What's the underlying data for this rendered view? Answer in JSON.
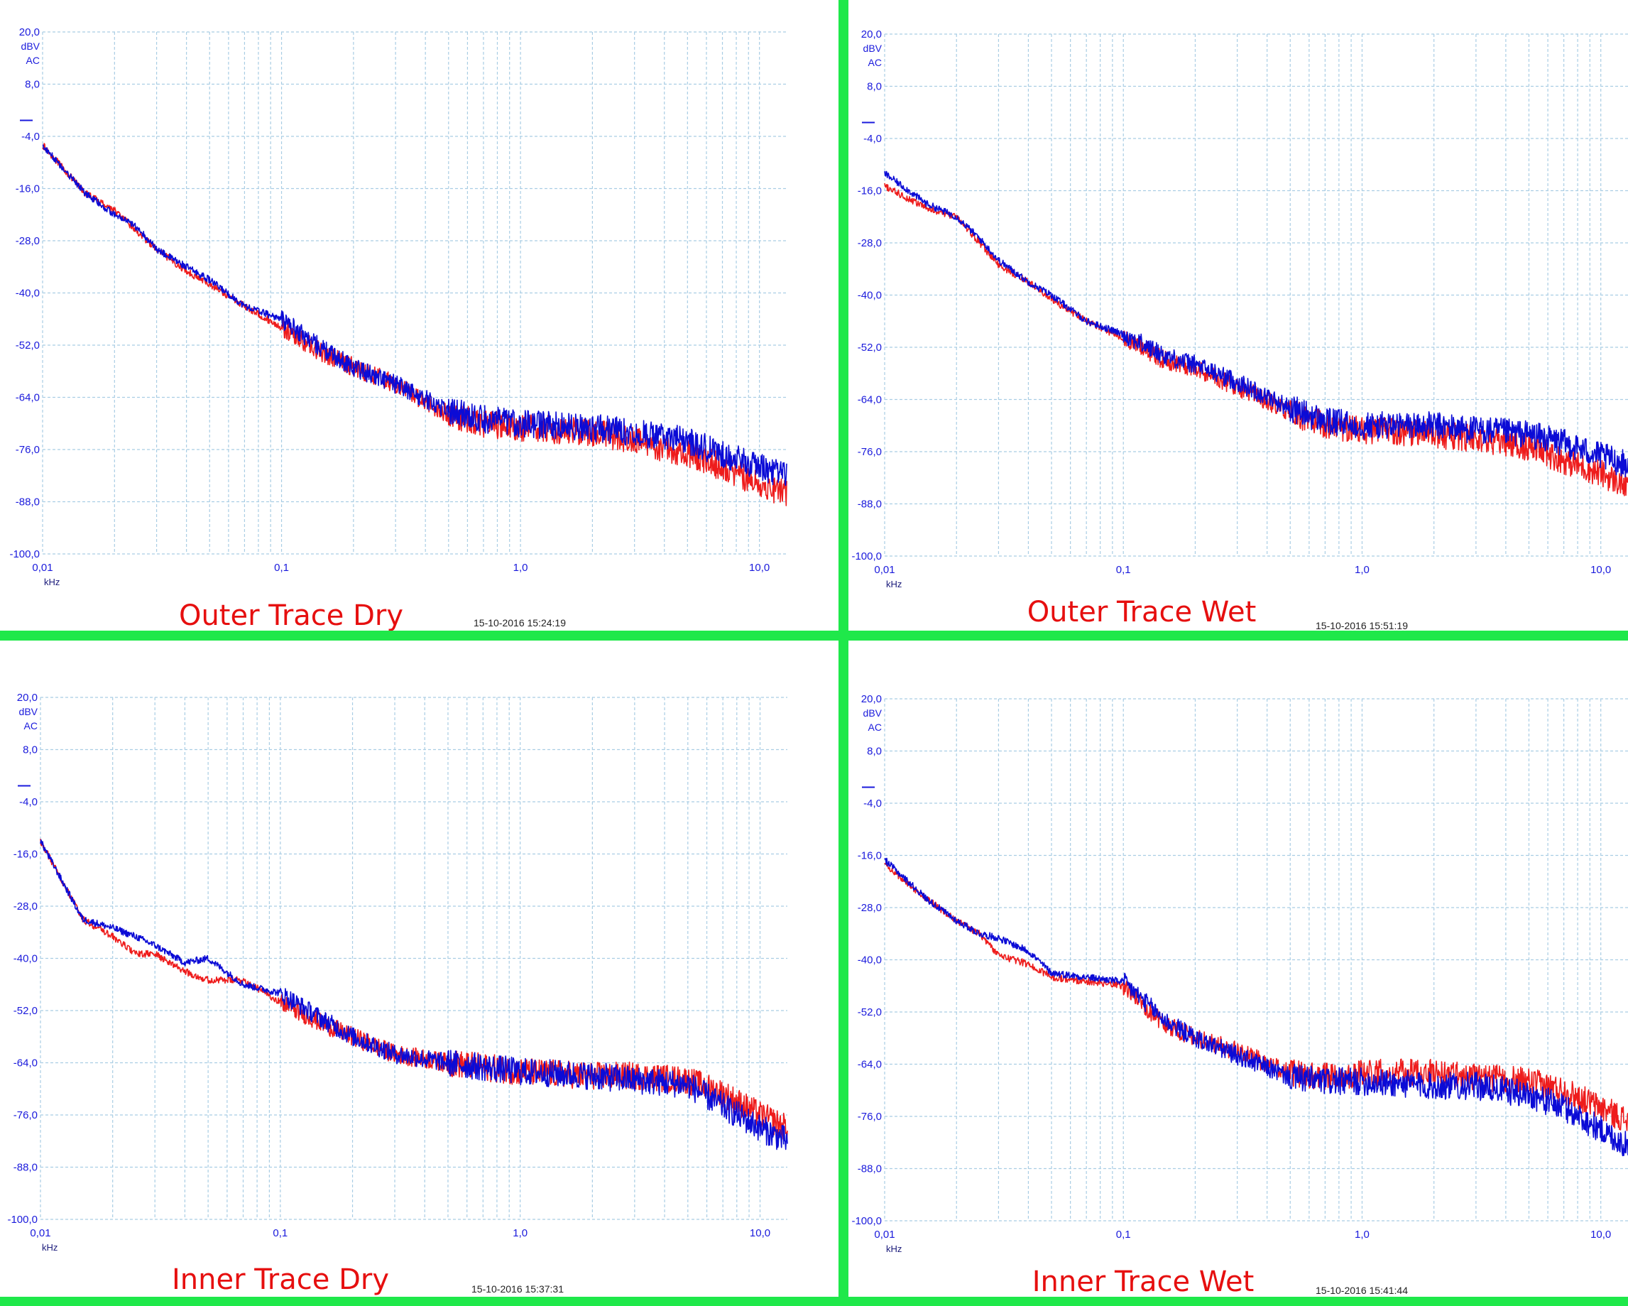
{
  "colors": {
    "divider": "#1fe84a",
    "series_red": "#ee1c1c",
    "series_blue": "#0b0bd6",
    "axis_text": "#1a1adc",
    "grid": "#a9cde4",
    "panel_title": "#e60f0f",
    "timestamp": "#222222"
  },
  "panels": [
    {
      "title": "Outer Trace Dry",
      "timestamp": "15-10-2016 15:24:19",
      "unit_lines": [
        "dBV",
        "AC"
      ],
      "x_unit": "kHz"
    },
    {
      "title": "Outer Trace Wet",
      "timestamp": "15-10-2016 15:51:19",
      "unit_lines": [
        "dBV",
        "AC"
      ],
      "x_unit": "kHz"
    },
    {
      "title": "Inner Trace Dry",
      "timestamp": "15-10-2016 15:37:31",
      "unit_lines": [
        "dBV",
        "AC"
      ],
      "x_unit": "kHz"
    },
    {
      "title": "Inner Trace Wet",
      "timestamp": "15-10-2016 15:41:44",
      "unit_lines": [
        "dBV",
        "AC"
      ],
      "x_unit": "kHz"
    }
  ],
  "chart_data": [
    {
      "type": "line",
      "title": "Outer Trace Dry",
      "xlabel": "kHz",
      "ylabel": "dBV AC",
      "x_scale": "log",
      "xlim": [
        0.01,
        13
      ],
      "ylim": [
        -100,
        20
      ],
      "x_ticks": [
        "0,01",
        "0,1",
        "1,0",
        "10,0"
      ],
      "y_ticks": [
        "20,0",
        "8,0",
        "-4,0",
        "-16,0",
        "-28,0",
        "-40,0",
        "-52,0",
        "-64,0",
        "-76,0",
        "-88,0",
        "-100,0"
      ],
      "grid": true,
      "x": [
        0.01,
        0.015,
        0.02,
        0.025,
        0.03,
        0.04,
        0.05,
        0.07,
        0.1,
        0.15,
        0.2,
        0.3,
        0.5,
        0.7,
        1.0,
        2.0,
        3.0,
        5.0,
        7.0,
        10.0,
        13.0
      ],
      "series": [
        {
          "values": [
            -6,
            -17,
            -21,
            -26,
            -30,
            -35,
            -38,
            -43,
            -48,
            -54,
            -57,
            -61,
            -68,
            -70,
            -71,
            -72,
            -74,
            -77,
            -80,
            -84,
            -86
          ]
        },
        {
          "values": [
            -6,
            -17,
            -22,
            -25,
            -30,
            -34,
            -37,
            -43,
            -46,
            -53,
            -57,
            -61,
            -67,
            -69,
            -70,
            -71,
            -72,
            -74,
            -77,
            -80,
            -82
          ]
        }
      ]
    },
    {
      "type": "line",
      "title": "Outer Trace Wet",
      "xlabel": "kHz",
      "ylabel": "dBV AC",
      "x_scale": "log",
      "xlim": [
        0.01,
        13
      ],
      "ylim": [
        -100,
        20
      ],
      "x_ticks": [
        "0,01",
        "0,1",
        "1,0",
        "10,0"
      ],
      "y_ticks": [
        "20,0",
        "8,0",
        "-4,0",
        "-16,0",
        "-28,0",
        "-40,0",
        "-52,0",
        "-64,0",
        "-76,0",
        "-88,0",
        "-100,0"
      ],
      "grid": true,
      "x": [
        0.01,
        0.015,
        0.02,
        0.025,
        0.03,
        0.04,
        0.05,
        0.07,
        0.1,
        0.15,
        0.2,
        0.3,
        0.5,
        0.7,
        1.0,
        2.0,
        3.0,
        5.0,
        7.0,
        10.0,
        13.0
      ],
      "series": [
        {
          "values": [
            -15,
            -20,
            -22,
            -28,
            -33,
            -37,
            -41,
            -46,
            -50,
            -55,
            -57,
            -61,
            -67,
            -70,
            -71,
            -72,
            -73,
            -75,
            -78,
            -81,
            -84
          ]
        },
        {
          "values": [
            -12,
            -19,
            -22,
            -27,
            -32,
            -37,
            -40,
            -46,
            -49,
            -54,
            -56,
            -60,
            -66,
            -69,
            -70,
            -70,
            -71,
            -72,
            -74,
            -77,
            -79
          ]
        }
      ]
    },
    {
      "type": "line",
      "title": "Inner Trace Dry",
      "xlabel": "kHz",
      "ylabel": "dBV AC",
      "x_scale": "log",
      "xlim": [
        0.01,
        13
      ],
      "ylim": [
        -100,
        20
      ],
      "x_ticks": [
        "0,01",
        "0,1",
        "1,0",
        "10,0"
      ],
      "y_ticks": [
        "20,0",
        "8,0",
        "-4,0",
        "-16,0",
        "-28,0",
        "-40,0",
        "-52,0",
        "-64,0",
        "-76,0",
        "-88,0",
        "-100,0"
      ],
      "grid": true,
      "x": [
        0.01,
        0.015,
        0.02,
        0.025,
        0.03,
        0.04,
        0.05,
        0.07,
        0.1,
        0.15,
        0.2,
        0.3,
        0.5,
        0.7,
        1.0,
        2.0,
        3.0,
        5.0,
        7.0,
        10.0,
        13.0
      ],
      "series": [
        {
          "values": [
            -13,
            -31,
            -35,
            -39,
            -39,
            -43,
            -45,
            -45,
            -50,
            -55,
            -58,
            -62,
            -64,
            -65,
            -66,
            -67,
            -67,
            -68,
            -71,
            -76,
            -79
          ]
        },
        {
          "values": [
            -13,
            -31,
            -33,
            -35,
            -37,
            -41,
            -40,
            -46,
            -48,
            -54,
            -58,
            -62,
            -64,
            -65,
            -66,
            -67,
            -68,
            -69,
            -74,
            -79,
            -82
          ]
        }
      ]
    },
    {
      "type": "line",
      "title": "Inner Trace Wet",
      "xlabel": "kHz",
      "ylabel": "dBV AC",
      "x_scale": "log",
      "xlim": [
        0.01,
        13
      ],
      "ylim": [
        -100,
        20
      ],
      "x_ticks": [
        "0,01",
        "0,1",
        "1,0",
        "10,0"
      ],
      "y_ticks": [
        "20,0",
        "8,0",
        "-4,0",
        "-16,0",
        "-28,0",
        "-40,0",
        "-52,0",
        "-64,0",
        "-76,0",
        "-88,0",
        "-100,0"
      ],
      "grid": true,
      "x": [
        0.01,
        0.015,
        0.02,
        0.025,
        0.03,
        0.04,
        0.05,
        0.07,
        0.1,
        0.15,
        0.2,
        0.3,
        0.5,
        0.7,
        1.0,
        2.0,
        3.0,
        5.0,
        7.0,
        10.0,
        13.0
      ],
      "series": [
        {
          "values": [
            -18,
            -26,
            -31,
            -34,
            -39,
            -41,
            -44,
            -45,
            -46,
            -55,
            -58,
            -61,
            -66,
            -67,
            -66,
            -66,
            -67,
            -68,
            -70,
            -74,
            -77
          ]
        },
        {
          "values": [
            -17,
            -26,
            -31,
            -34,
            -35,
            -38,
            -43,
            -44,
            -45,
            -54,
            -58,
            -62,
            -67,
            -68,
            -68,
            -69,
            -69,
            -71,
            -74,
            -79,
            -83
          ]
        }
      ]
    }
  ]
}
